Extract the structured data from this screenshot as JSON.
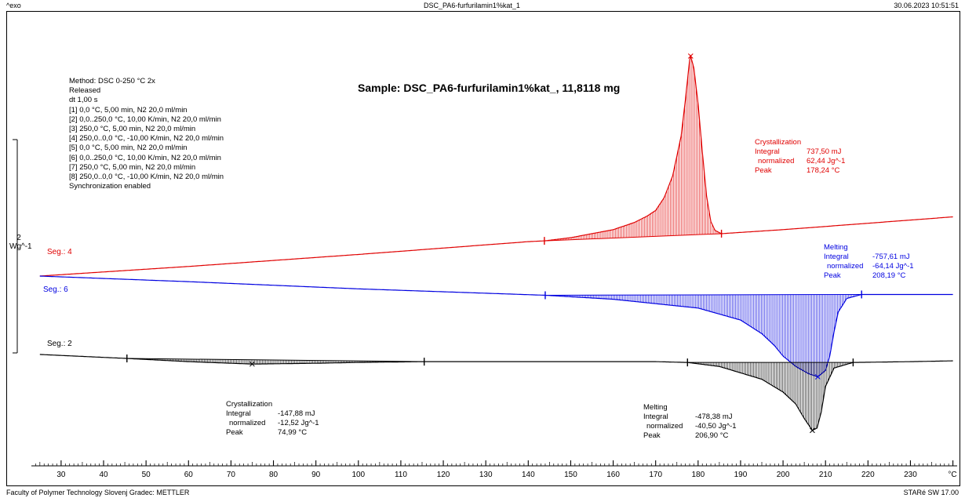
{
  "header": {
    "exo": "^exo",
    "title": "DSC_PA6-furfurilamin1%kat_1",
    "datetime": "30.06.2023 10:51:51"
  },
  "footer": {
    "left": "Faculty of Polymer Technology Slovenj Gradec: METTLER",
    "right": "STARé SW 17.00"
  },
  "sample": "Sample: DSC_PA6-furfurilamin1%kat_, 11,8118 mg",
  "method_lines": [
    "Method: DSC 0-250 °C 2x",
    "Released",
    "dt 1,00 s",
    "[1] 0,0 °C, 5,00 min, N2 20,0 ml/min",
    "[2] 0,0..250,0 °C, 10,00 K/min, N2 20,0 ml/min",
    "[3] 250,0 °C, 5,00 min, N2 20,0 ml/min",
    "[4] 250,0..0,0 °C, -10,00 K/min, N2 20,0 ml/min",
    "[5] 0,0 °C, 5,00 min, N2 20,0 ml/min",
    "[6] 0,0..250,0 °C, 10,00 K/min, N2 20,0 ml/min",
    "[7] 250,0 °C, 5,00 min, N2 20,0 ml/min",
    "[8] 250,0..0,0 °C, -10,00 K/min, N2 20,0 ml/min",
    "Synchronization enabled"
  ],
  "y_scale": {
    "value": "2",
    "unit": "Wg^-1"
  },
  "segments": {
    "seg4": "Seg.: 4",
    "seg6": "Seg.: 6",
    "seg2": "Seg.: 2"
  },
  "results": {
    "seg4_cryst": {
      "title": "Crystallization",
      "integral_label": "Integral",
      "integral": "737,50 mJ",
      "normalized_label": "normalized",
      "normalized": "62,44 Jg^-1",
      "peak_label": "Peak",
      "peak": "178,24 °C"
    },
    "seg6_melt": {
      "title": "Melting",
      "integral_label": "Integral",
      "integral": "-757,61 mJ",
      "normalized_label": "normalized",
      "normalized": "-64,14 Jg^-1",
      "peak_label": "Peak",
      "peak": "208,19 °C"
    },
    "seg2_cryst": {
      "title": "Crystallization",
      "integral_label": "Integral",
      "integral": "-147,88 mJ",
      "normalized_label": "normalized",
      "normalized": "-12,52 Jg^-1",
      "peak_label": "Peak",
      "peak": "74,99 °C"
    },
    "seg2_melt": {
      "title": "Melting",
      "integral_label": "Integral",
      "integral": "-478,38 mJ",
      "normalized_label": "normalized",
      "normalized": "-40,50 Jg^-1",
      "peak_label": "Peak",
      "peak": "206,90 °C"
    }
  },
  "colors": {
    "seg4": "#e00000",
    "seg6": "#0000e0",
    "seg2": "#000000"
  },
  "chart_data": {
    "type": "line",
    "title": "Sample: DSC_PA6-furfurilamin1%kat_, 11,8118 mg",
    "xlabel": "°C",
    "ylabel": "Wg^-1",
    "xlim": [
      23,
      241
    ],
    "x_ticks": [
      30,
      40,
      50,
      60,
      70,
      80,
      90,
      100,
      110,
      120,
      130,
      140,
      150,
      160,
      170,
      180,
      190,
      200,
      210,
      220,
      230
    ],
    "grid": false,
    "series": [
      {
        "name": "Seg.: 4",
        "x": [
          25,
          60,
          100,
          140,
          143.8,
          150,
          160,
          165,
          168,
          170,
          172,
          174,
          176,
          177,
          178,
          178.24,
          179,
          180,
          181,
          182,
          183,
          184,
          185.5,
          200,
          220,
          240
        ],
        "y": [
          0,
          0.12,
          0.27,
          0.43,
          0.44,
          0.48,
          0.58,
          0.67,
          0.75,
          0.82,
          0.98,
          1.25,
          1.75,
          2.2,
          2.7,
          2.75,
          2.6,
          2.15,
          1.55,
          1.0,
          0.68,
          0.57,
          0.53,
          0.58,
          0.66,
          0.74
        ],
        "baseline_x": [
          143.8,
          185.5
        ]
      },
      {
        "name": "Seg.: 6",
        "x": [
          25,
          60,
          100,
          144,
          160,
          180,
          190,
          195,
          198,
          200,
          203,
          206,
          208.19,
          210,
          211,
          212,
          213,
          215,
          218.5,
          230,
          240
        ],
        "y": [
          0,
          -0.07,
          -0.16,
          -0.24,
          -0.29,
          -0.4,
          -0.55,
          -0.72,
          -0.87,
          -1.0,
          -1.13,
          -1.22,
          -1.26,
          -1.18,
          -1.0,
          -0.7,
          -0.45,
          -0.28,
          -0.23,
          -0.23,
          -0.23
        ],
        "baseline_x": [
          144,
          218.5
        ]
      },
      {
        "name": "Seg.: 2",
        "x": [
          25,
          45.5,
          60,
          75,
          90,
          100,
          115.5,
          140,
          160,
          170,
          177.5,
          185,
          195,
          200,
          203,
          205,
          206.9,
          208,
          209,
          210,
          212,
          216.5,
          230,
          240
        ],
        "y": [
          -0.98,
          -1.03,
          -1.07,
          -1.1,
          -1.09,
          -1.08,
          -1.07,
          -1.07,
          -1.07,
          -1.07,
          -1.08,
          -1.13,
          -1.29,
          -1.45,
          -1.6,
          -1.78,
          -1.93,
          -1.9,
          -1.7,
          -1.38,
          -1.15,
          -1.08,
          -1.07,
          -1.06
        ],
        "baseline_x": [
          45.5,
          115.5,
          177.5,
          216.5
        ]
      }
    ],
    "annotations": [
      {
        "text": "Crystallization Integral 737,50 mJ normalized 62,44 Jg^-1 Peak 178,24 °C",
        "series": "Seg.: 4"
      },
      {
        "text": "Melting Integral -757,61 mJ normalized -64,14 Jg^-1 Peak 208,19 °C",
        "series": "Seg.: 6"
      },
      {
        "text": "Crystallization Integral -147,88 mJ normalized -12,52 Jg^-1 Peak 74,99 °C",
        "series": "Seg.: 2"
      },
      {
        "text": "Melting Integral -478,38 mJ normalized -40,50 Jg^-1 Peak 206,90 °C",
        "series": "Seg.: 2"
      }
    ]
  }
}
